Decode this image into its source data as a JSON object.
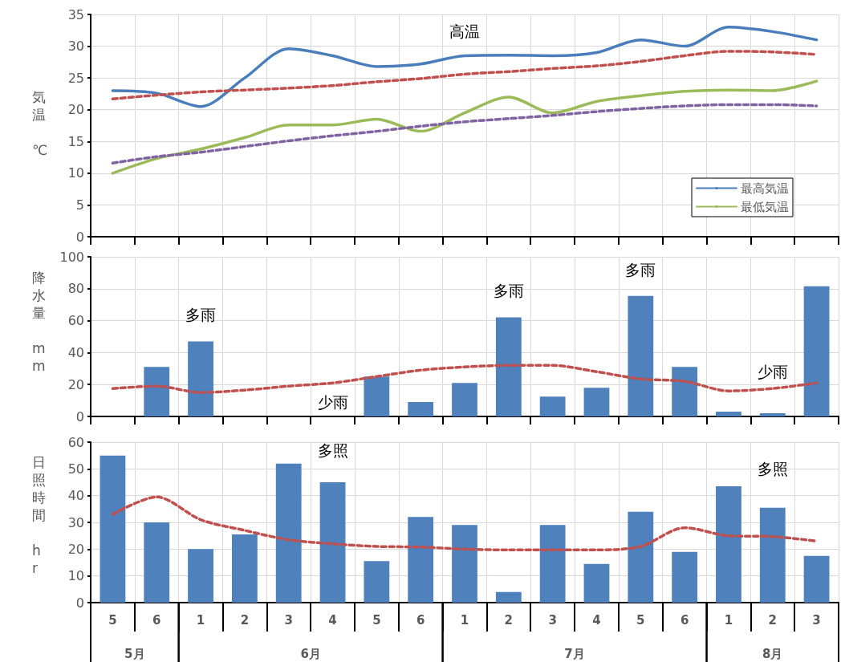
{
  "chart_data": [
    {
      "type": "line",
      "ylabel": "気温　℃",
      "categories": [
        "5",
        "6",
        "1",
        "2",
        "3",
        "4",
        "5",
        "6",
        "1",
        "2",
        "3",
        "4",
        "5",
        "6",
        "1",
        "2",
        "3"
      ],
      "ylim": [
        0,
        35
      ],
      "yticks": [
        0,
        5,
        10,
        15,
        20,
        25,
        30,
        35
      ],
      "grid": true,
      "legend": "bottom right",
      "tick_labels": "y",
      "annotations": [
        "高温"
      ],
      "series": [
        {
          "name": "最高気温",
          "color": "#4a7ebb",
          "line_style": "solid",
          "values": [
            23,
            22.6,
            20.5,
            25,
            29.6,
            28.5,
            26.8,
            27.2,
            28.5,
            28.6,
            28.5,
            29,
            31,
            30,
            33,
            32.3,
            31
          ]
        },
        {
          "name": "最低気温",
          "color": "#9bbb59",
          "line_style": "solid",
          "values": [
            10,
            12.3,
            13.8,
            15.6,
            17.6,
            17.6,
            18.5,
            16.6,
            19.5,
            22,
            19.5,
            21.3,
            22.2,
            22.9,
            23.1,
            23,
            24.5
          ]
        },
        {
          "color": "#c0504d",
          "line_style": "dashed",
          "values": [
            21.7,
            22.3,
            22.8,
            23.1,
            23.4,
            23.8,
            24.4,
            24.9,
            25.6,
            26,
            26.5,
            26.9,
            27.6,
            28.5,
            29.2,
            29.1,
            28.7
          ]
        },
        {
          "color": "#8064a2",
          "line_style": "dashed",
          "values": [
            11.6,
            12.6,
            13.3,
            14.2,
            15.1,
            15.9,
            16.6,
            17.4,
            18.1,
            18.6,
            19.1,
            19.7,
            20.2,
            20.6,
            20.8,
            20.8,
            20.6
          ]
        }
      ]
    },
    {
      "type": "bar",
      "ylabel": "降水量　mm",
      "categories": [
        "5",
        "6",
        "1",
        "2",
        "3",
        "4",
        "5",
        "6",
        "1",
        "2",
        "3",
        "4",
        "5",
        "6",
        "1",
        "2",
        "3"
      ],
      "ylim": [
        0,
        100
      ],
      "yticks": [
        0,
        20,
        40,
        60,
        80,
        100
      ],
      "grid": true,
      "tick_labels": "y",
      "annotations": [
        "多雨",
        "少雨",
        "多雨",
        "多雨",
        "少雨"
      ],
      "series": [
        {
          "color": "#4f81bd",
          "values": [
            0,
            31,
            47,
            0,
            0,
            0,
            25,
            9,
            21,
            62,
            12.5,
            18,
            75.5,
            31,
            3,
            2,
            81.5
          ]
        },
        {
          "type": "line",
          "color": "#c0504d",
          "line_style": "dashed",
          "values": [
            17.5,
            19,
            15,
            16.5,
            19,
            21,
            25,
            29,
            31,
            32,
            32,
            28,
            23.5,
            22,
            16,
            17.5,
            21
          ]
        }
      ]
    },
    {
      "type": "bar",
      "ylabel": "日照時間　hr",
      "categories": [
        "5",
        "6",
        "1",
        "2",
        "3",
        "4",
        "5",
        "6",
        "1",
        "2",
        "3",
        "4",
        "5",
        "6",
        "1",
        "2",
        "3"
      ],
      "ylim": [
        0,
        60
      ],
      "yticks": [
        0,
        10,
        20,
        30,
        40,
        50,
        60
      ],
      "grid": true,
      "annotations": [
        "多照",
        "多照",
        "5月",
        "6月",
        "7月",
        "8月"
      ],
      "series": [
        {
          "color": "#4f81bd",
          "values": [
            55,
            30,
            20,
            25.5,
            52,
            45,
            15.5,
            32,
            29,
            4,
            29,
            14.5,
            34,
            19,
            43.5,
            35.5,
            17.5
          ]
        },
        {
          "type": "line",
          "color": "#c0504d",
          "line_style": "dashed",
          "values": [
            33,
            39.5,
            31,
            27,
            23.5,
            22,
            21,
            20.8,
            20,
            19.7,
            19.7,
            19.7,
            21,
            28,
            25,
            24.7,
            23
          ]
        }
      ]
    }
  ]
}
